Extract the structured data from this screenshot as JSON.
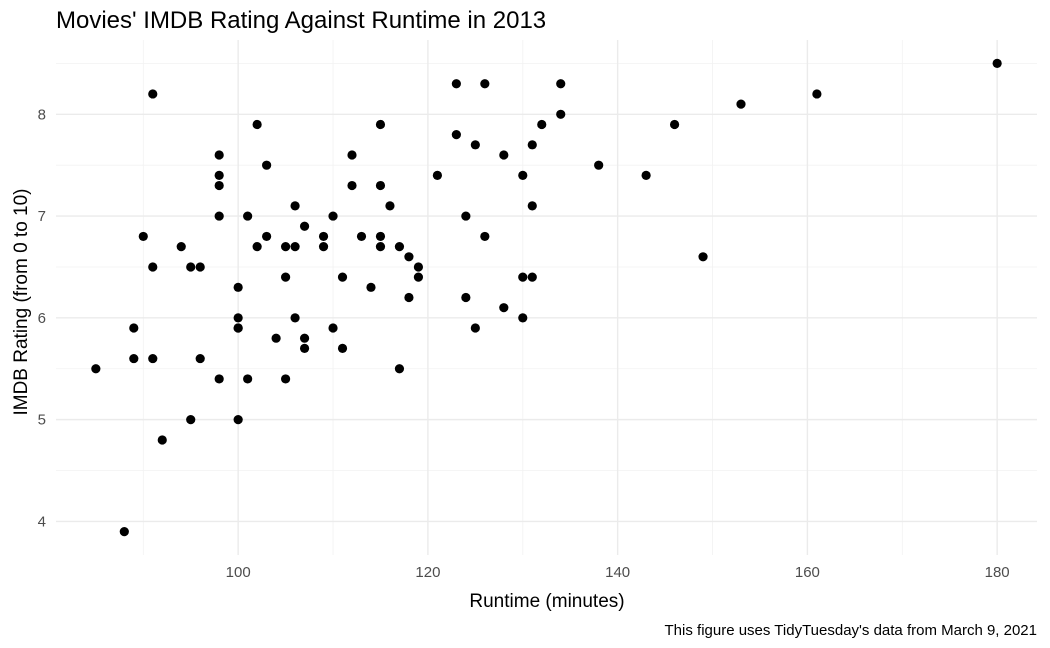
{
  "chart_data": {
    "type": "scatter",
    "title": "Movies' IMDB Rating Against Runtime in 2013",
    "xlabel": "Runtime (minutes)",
    "ylabel": "IMDB Rating (from 0 to 10)",
    "caption": "This figure uses TidyTuesday's data from March 9, 2021",
    "xlim": [
      80.8,
      184.2
    ],
    "ylim": [
      3.67,
      8.73
    ],
    "x_ticks": [
      100,
      120,
      140,
      160,
      180
    ],
    "y_ticks": [
      4,
      5,
      6,
      7,
      8
    ],
    "x_tick_labels": [
      "100",
      "120",
      "140",
      "160",
      "180"
    ],
    "y_tick_labels": [
      "4",
      "5",
      "6",
      "7",
      "8"
    ],
    "grid": true,
    "legend": "none",
    "point_color": "#000000",
    "x": [
      85,
      88,
      89,
      89,
      90,
      91,
      91,
      91,
      92,
      94,
      95,
      95,
      96,
      96,
      98,
      98,
      98,
      98,
      98,
      100,
      100,
      100,
      100,
      100,
      101,
      101,
      102,
      102,
      103,
      103,
      104,
      105,
      105,
      105,
      106,
      106,
      106,
      107,
      107,
      107,
      109,
      109,
      110,
      110,
      111,
      111,
      112,
      112,
      113,
      114,
      115,
      115,
      115,
      115,
      116,
      117,
      117,
      118,
      118,
      119,
      119,
      121,
      123,
      123,
      124,
      124,
      125,
      125,
      126,
      126,
      128,
      128,
      130,
      130,
      130,
      131,
      131,
      131,
      132,
      134,
      134,
      138,
      143,
      146,
      149,
      153,
      161,
      180
    ],
    "y": [
      5.5,
      3.9,
      5.9,
      5.6,
      6.8,
      8.2,
      6.5,
      5.6,
      4.8,
      6.7,
      6.5,
      5.0,
      6.5,
      5.6,
      7.6,
      7.4,
      7.3,
      7.0,
      5.4,
      6.3,
      6.0,
      5.9,
      5.9,
      5.0,
      7.0,
      5.4,
      7.9,
      6.7,
      7.5,
      6.8,
      5.8,
      6.7,
      6.4,
      5.4,
      7.1,
      6.7,
      6.0,
      6.9,
      5.8,
      5.7,
      6.8,
      6.7,
      7.0,
      5.9,
      6.4,
      5.7,
      7.6,
      7.3,
      6.8,
      6.3,
      7.9,
      7.3,
      6.8,
      6.7,
      7.1,
      6.7,
      5.5,
      6.6,
      6.2,
      6.5,
      6.4,
      7.4,
      8.3,
      7.8,
      7.0,
      6.2,
      7.7,
      5.9,
      8.3,
      6.8,
      7.6,
      6.1,
      7.4,
      6.4,
      6.0,
      7.7,
      7.1,
      6.4,
      7.9,
      8.3,
      8.0,
      7.5,
      7.4,
      7.9,
      6.6,
      8.1,
      8.2,
      8.5
    ]
  }
}
